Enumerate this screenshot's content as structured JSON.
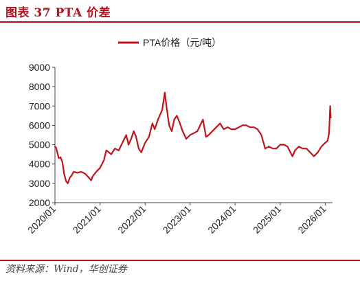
{
  "figure": {
    "title": "图表 37 PTA 价差",
    "source": "资料来源：Wind，华创证券"
  },
  "chart_data": {
    "type": "line",
    "title": "",
    "xlabel": "",
    "ylabel": "",
    "legend_position": "top-center",
    "grid": false,
    "ylim": [
      2000,
      9000
    ],
    "yticks": [
      2000,
      3000,
      4000,
      5000,
      6000,
      7000,
      8000,
      9000
    ],
    "xlim": [
      "2020-01-01",
      "2026-03-01"
    ],
    "xticks": [
      "2020/01",
      "2021/01",
      "2022/01",
      "2023/01",
      "2024/01",
      "2025/01",
      "2026/01"
    ],
    "series": [
      {
        "name": "PTA价格（元/吨）",
        "color": "#c0141c",
        "points": [
          [
            "2020-01-01",
            4900
          ],
          [
            "2020-01-10",
            4850
          ],
          [
            "2020-01-20",
            4600
          ],
          [
            "2020-02-01",
            4300
          ],
          [
            "2020-02-15",
            4350
          ],
          [
            "2020-03-01",
            4100
          ],
          [
            "2020-03-15",
            3500
          ],
          [
            "2020-04-01",
            3100
          ],
          [
            "2020-04-15",
            3000
          ],
          [
            "2020-05-01",
            3300
          ],
          [
            "2020-05-15",
            3400
          ],
          [
            "2020-06-01",
            3600
          ],
          [
            "2020-07-01",
            3550
          ],
          [
            "2020-08-01",
            3600
          ],
          [
            "2020-09-01",
            3500
          ],
          [
            "2020-10-01",
            3300
          ],
          [
            "2020-10-20",
            3150
          ],
          [
            "2020-11-01",
            3350
          ],
          [
            "2020-12-01",
            3600
          ],
          [
            "2021-01-01",
            3800
          ],
          [
            "2021-02-01",
            4200
          ],
          [
            "2021-02-20",
            4700
          ],
          [
            "2021-03-05",
            4650
          ],
          [
            "2021-04-01",
            4500
          ],
          [
            "2021-05-01",
            4800
          ],
          [
            "2021-06-01",
            4700
          ],
          [
            "2021-07-01",
            5100
          ],
          [
            "2021-08-01",
            5500
          ],
          [
            "2021-08-20",
            5000
          ],
          [
            "2021-09-10",
            5300
          ],
          [
            "2021-10-01",
            5700
          ],
          [
            "2021-10-20",
            5400
          ],
          [
            "2021-11-10",
            4800
          ],
          [
            "2021-12-01",
            4600
          ],
          [
            "2022-01-01",
            5100
          ],
          [
            "2022-02-01",
            5400
          ],
          [
            "2022-03-01",
            6100
          ],
          [
            "2022-03-20",
            5800
          ],
          [
            "2022-04-15",
            6300
          ],
          [
            "2022-05-20",
            6800
          ],
          [
            "2022-06-10",
            7700
          ],
          [
            "2022-06-25",
            6900
          ],
          [
            "2022-07-15",
            6000
          ],
          [
            "2022-08-05",
            5700
          ],
          [
            "2022-08-25",
            6300
          ],
          [
            "2022-09-15",
            6500
          ],
          [
            "2022-10-05",
            6200
          ],
          [
            "2022-11-01",
            5700
          ],
          [
            "2022-12-01",
            5300
          ],
          [
            "2023-01-01",
            5500
          ],
          [
            "2023-02-01",
            5600
          ],
          [
            "2023-03-01",
            5700
          ],
          [
            "2023-04-15",
            6300
          ],
          [
            "2023-05-10",
            5400
          ],
          [
            "2023-06-01",
            5500
          ],
          [
            "2023-07-01",
            5700
          ],
          [
            "2023-08-01",
            5900
          ],
          [
            "2023-09-01",
            6100
          ],
          [
            "2023-10-01",
            5800
          ],
          [
            "2023-11-01",
            5900
          ],
          [
            "2023-12-01",
            5800
          ],
          [
            "2024-01-01",
            5800
          ],
          [
            "2024-02-01",
            5900
          ],
          [
            "2024-03-01",
            6000
          ],
          [
            "2024-04-01",
            6000
          ],
          [
            "2024-05-01",
            5900
          ],
          [
            "2024-06-01",
            5900
          ],
          [
            "2024-07-01",
            5800
          ],
          [
            "2024-08-01",
            5500
          ],
          [
            "2024-09-01",
            4800
          ],
          [
            "2024-10-01",
            4900
          ],
          [
            "2024-11-01",
            4800
          ],
          [
            "2024-12-01",
            4800
          ],
          [
            "2025-01-01",
            5000
          ],
          [
            "2025-02-01",
            5000
          ],
          [
            "2025-03-01",
            4900
          ],
          [
            "2025-04-10",
            4400
          ],
          [
            "2025-05-01",
            4700
          ],
          [
            "2025-06-01",
            4900
          ],
          [
            "2025-07-01",
            4800
          ],
          [
            "2025-08-01",
            4800
          ],
          [
            "2025-09-01",
            4600
          ],
          [
            "2025-10-01",
            4400
          ],
          [
            "2025-11-01",
            4600
          ],
          [
            "2025-12-01",
            4900
          ],
          [
            "2026-01-01",
            5100
          ],
          [
            "2026-01-20",
            5200
          ],
          [
            "2026-02-01",
            5600
          ],
          [
            "2026-02-10",
            7000
          ],
          [
            "2026-02-15",
            6400
          ]
        ]
      }
    ]
  }
}
